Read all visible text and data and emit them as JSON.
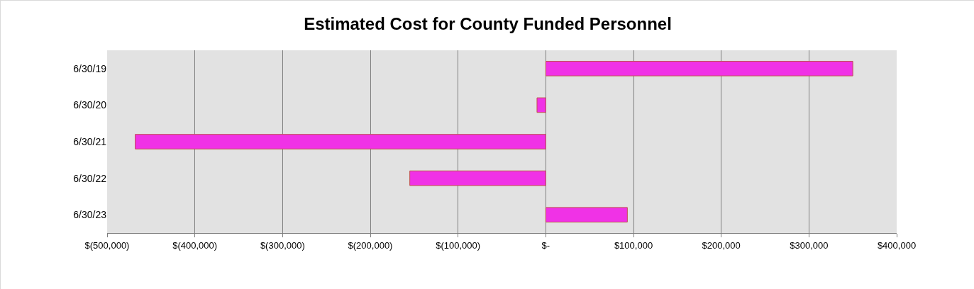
{
  "chart_data": {
    "type": "bar",
    "orientation": "horizontal",
    "title": "Estimated Cost for County Funded Personnel",
    "categories": [
      "6/30/19",
      "6/30/20",
      "6/30/21",
      "6/30/22",
      "6/30/23"
    ],
    "values": [
      350000,
      -10000,
      -468000,
      -155000,
      93000
    ],
    "color": "#f032e6",
    "xlim": [
      -500000,
      400000
    ],
    "xticks": [
      {
        "value": -500000,
        "label": "$(500,000)"
      },
      {
        "value": -400000,
        "label": "$(400,000)"
      },
      {
        "value": -300000,
        "label": "$(300,000)"
      },
      {
        "value": -200000,
        "label": "$(200,000)"
      },
      {
        "value": -100000,
        "label": "$(100,000)"
      },
      {
        "value": 0,
        "label": "$-"
      },
      {
        "value": 100000,
        "label": "$100,000"
      },
      {
        "value": 200000,
        "label": "$200,000"
      },
      {
        "value": 300000,
        "label": "$300,000"
      },
      {
        "value": 400000,
        "label": "$400,000"
      }
    ],
    "grid": "x"
  }
}
